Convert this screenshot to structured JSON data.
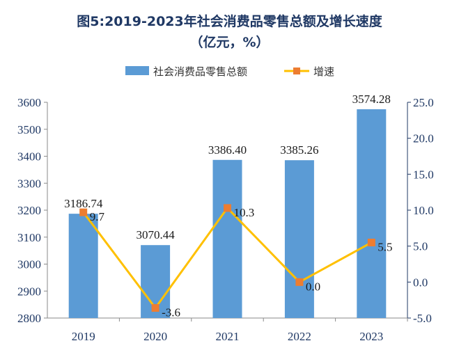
{
  "title_line1": "图5:2019-2023年社会消费品零售总额及增长速度",
  "title_line2": "（亿元，%）",
  "chart_data": {
    "type": "bar",
    "categories": [
      "2019",
      "2020",
      "2021",
      "2022",
      "2023"
    ],
    "series": [
      {
        "name": "社会消费品零售总额",
        "type": "bar",
        "axis": "left",
        "values": [
          3186.74,
          3070.44,
          3386.4,
          3385.26,
          3574.28
        ],
        "labels": [
          "3186.74",
          "3070.44",
          "3386.40",
          "3385.26",
          "3574.28"
        ],
        "color": "#5b9bd5"
      },
      {
        "name": "增速",
        "type": "line",
        "axis": "right",
        "values": [
          9.7,
          -3.6,
          10.3,
          0.0,
          5.5
        ],
        "labels": [
          "9.7",
          "-3.6",
          "10.3",
          "0.0",
          "5.5"
        ],
        "color": "#ffc000",
        "marker_color": "#ed7d31"
      }
    ],
    "y_left": {
      "lim": [
        2800,
        3600
      ],
      "ticks": [
        "2800",
        "2900",
        "3000",
        "3100",
        "3200",
        "3300",
        "3400",
        "3500",
        "3600"
      ]
    },
    "y_right": {
      "lim": [
        -5,
        25
      ],
      "ticks": [
        "-5.0",
        "0.0",
        "5.0",
        "10.0",
        "15.0",
        "20.0",
        "25.0"
      ]
    },
    "legend_position": "top",
    "grid": false
  }
}
